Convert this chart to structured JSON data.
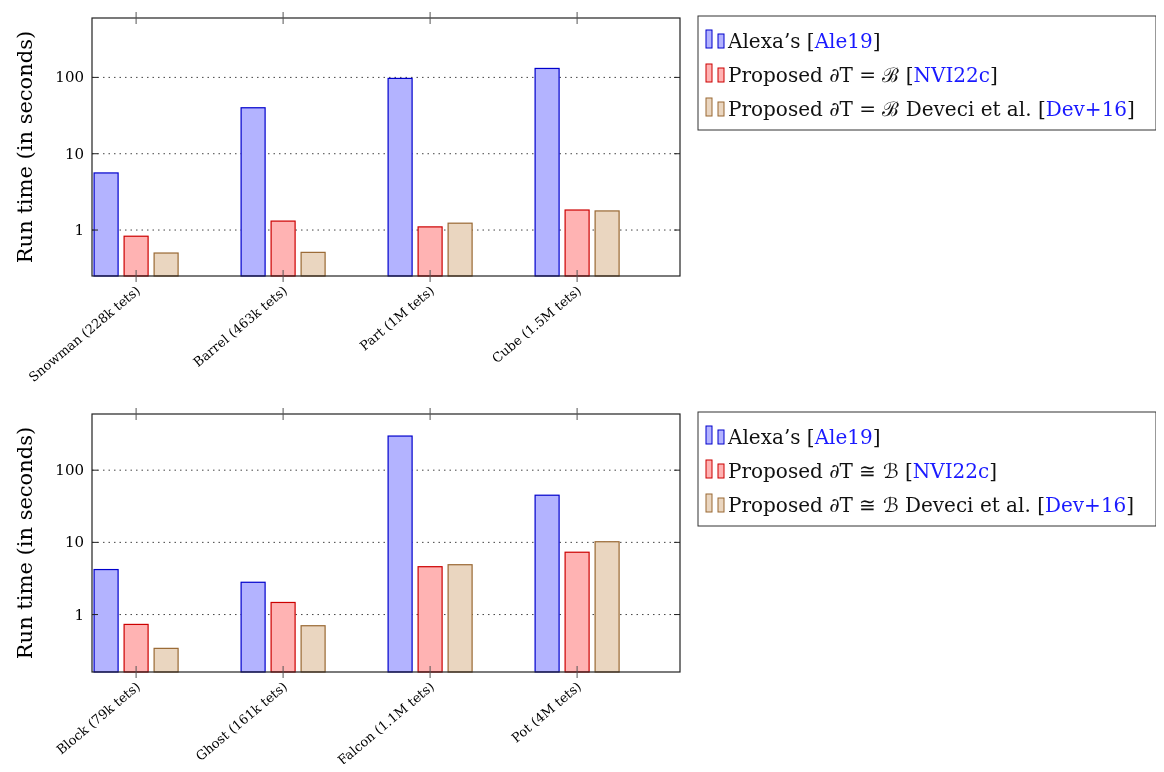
{
  "chart_data": [
    {
      "type": "bar",
      "ylabel": "Run time (in seconds)",
      "categories": [
        "Snowman (228k tets)",
        "Barrel (463k tets)",
        "Part (1M tets)",
        "Cube (1.5M tets)"
      ],
      "log": true,
      "ylim": [
        0.25,
        600
      ],
      "yticks": [
        1,
        10,
        100
      ],
      "grid": "y",
      "legend": "right",
      "series": [
        {
          "name": "Alexa’s [Ale19]",
          "color": "#b3b3ff",
          "values": [
            5.6,
            40,
            97,
            131
          ]
        },
        {
          "name": "Proposed ∂T = ℬ [NVI22c]",
          "color": "#ffb3b3",
          "values": [
            0.83,
            1.31,
            1.1,
            1.83
          ]
        },
        {
          "name": "Proposed ∂T = ℬ Deveci et al. [Dev+16]",
          "color": "#ead6c0",
          "values": [
            0.5,
            0.51,
            1.23,
            1.78
          ]
        }
      ]
    },
    {
      "type": "bar",
      "ylabel": "Run time (in seconds)",
      "categories": [
        "Block (79k tets)",
        "Ghost (161k tets)",
        "Falcon (1.1M tets)",
        "Pot (4M tets)"
      ],
      "log": true,
      "ylim": [
        0.16,
        600
      ],
      "yticks": [
        1,
        10,
        100
      ],
      "grid": "y",
      "legend": "right",
      "series": [
        {
          "name": "Alexa’s [Ale19]",
          "color": "#b3b3ff",
          "values": [
            4.2,
            2.8,
            297,
            45
          ]
        },
        {
          "name": "Proposed ∂T ≅ ℬ [NVI22c]",
          "color": "#ffb3b3",
          "values": [
            0.73,
            1.47,
            4.6,
            7.3
          ]
        },
        {
          "name": "Proposed ∂T ≅ ℬ Deveci et al. [Dev+16]",
          "color": "#ead6c0",
          "values": [
            0.34,
            0.7,
            4.9,
            10.2
          ]
        }
      ]
    }
  ]
}
